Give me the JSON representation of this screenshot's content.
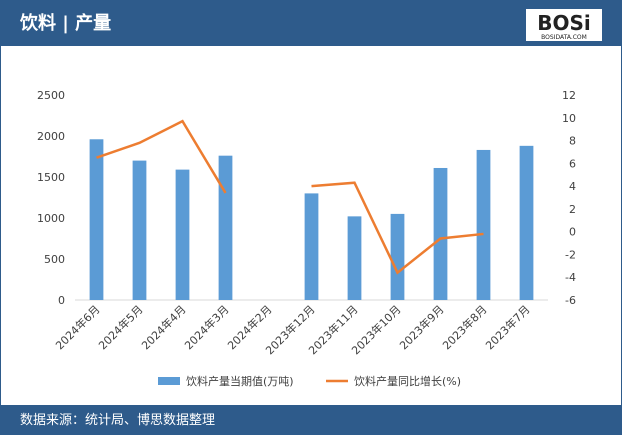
{
  "chart_data": {
    "type": "bar",
    "title": "饮料 | 产量",
    "logo": "BOSi",
    "logo_subtitle": "BOSIDATA.COM",
    "source": "数据来源：统计局、博思数据整理",
    "categories": [
      "2024年6月",
      "2024年5月",
      "2024年4月",
      "2024年3月",
      "2024年2月",
      "2023年12月",
      "2023年11月",
      "2023年10月",
      "2023年9月",
      "2023年8月",
      "2023年7月"
    ],
    "series": [
      {
        "name": "饮料产量当期值(万吨)",
        "type": "bar",
        "color": "#5b9bd5",
        "values": [
          1960,
          1700,
          1590,
          1760,
          null,
          1300,
          1020,
          1050,
          1610,
          1830,
          1880
        ]
      },
      {
        "name": "饮料产量同比增长(%)",
        "type": "line",
        "axis": "y2",
        "color": "#ed7d31",
        "values": [
          6.5,
          7.8,
          9.7,
          3.4,
          null,
          4.0,
          4.3,
          -3.6,
          -0.6,
          -0.2,
          null
        ]
      }
    ],
    "ylim": [
      0,
      2500
    ],
    "yticks": [
      0,
      500,
      1000,
      1500,
      2000,
      2500
    ],
    "y2lim": [
      -6,
      12
    ],
    "y2ticks": [
      -6,
      -4,
      -2,
      0,
      2,
      4,
      6,
      8,
      10,
      12
    ],
    "legend": "bottom"
  }
}
